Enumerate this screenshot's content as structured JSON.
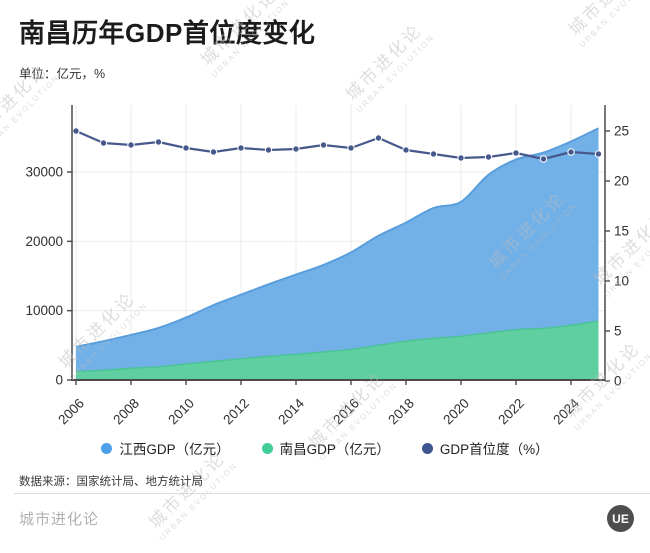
{
  "chart_data": {
    "type": "area",
    "title": "南昌历年GDP首位度变化",
    "subtitle": "单位：亿元，%",
    "x": [
      2006,
      2007,
      2008,
      2009,
      2010,
      2011,
      2012,
      2013,
      2014,
      2015,
      2016,
      2017,
      2018,
      2019,
      2020,
      2021,
      2022,
      2023,
      2024,
      2025
    ],
    "x_tick_labels": [
      "2006",
      "2008",
      "2010",
      "2012",
      "2014",
      "2016",
      "2018",
      "2020",
      "2022",
      "2024"
    ],
    "series": [
      {
        "name": "江西GDP（亿元）",
        "type": "area",
        "axis": "left",
        "color": "#72B0E8",
        "line_color": "#589EDC",
        "values": [
          4800,
          5600,
          6500,
          7500,
          9000,
          10800,
          12300,
          13800,
          15200,
          16600,
          18400,
          20800,
          22700,
          24800,
          25700,
          29600,
          31800,
          32800,
          34400,
          36300
        ]
      },
      {
        "name": "南昌GDP（亿元）",
        "type": "area",
        "axis": "left",
        "color": "#5FCEA1",
        "line_color": "#4BC495",
        "values": [
          1200,
          1400,
          1700,
          1900,
          2300,
          2700,
          3050,
          3400,
          3700,
          4050,
          4400,
          5000,
          5600,
          6000,
          6300,
          6800,
          7250,
          7450,
          7900,
          8500
        ]
      },
      {
        "name": "GDP首位度（%）",
        "type": "line",
        "axis": "right",
        "color": "#47598C",
        "values": [
          25.0,
          23.8,
          23.6,
          23.9,
          23.3,
          22.9,
          23.3,
          23.1,
          23.2,
          23.6,
          23.3,
          24.3,
          23.1,
          22.7,
          22.3,
          22.4,
          22.8,
          22.2,
          22.9,
          22.7
        ]
      }
    ],
    "left_axis": {
      "ticks": [
        0,
        10000,
        20000,
        30000
      ],
      "max": 40000
    },
    "right_axis": {
      "ticks": [
        0,
        5,
        10,
        15,
        20,
        25
      ],
      "max": 27.5
    },
    "grid": true,
    "legend_position": "bottom"
  },
  "source": "数据来源：国家统计局、地方统计局",
  "footer": {
    "brand": "城市进化论",
    "logo_text": "UE"
  },
  "watermark": {
    "line1": "城市进化论",
    "line2": "URBAN EVOLUTION"
  },
  "colors": {
    "jiangxi_blue": "#72B0E8",
    "nanchang_green": "#5FCEA1",
    "primacy_navy": "#47598C",
    "grid": "#ebebeb",
    "axis": "#4a4a4a",
    "watermark": "#bdbdbd",
    "footer_gray": "#b1b1b1"
  }
}
